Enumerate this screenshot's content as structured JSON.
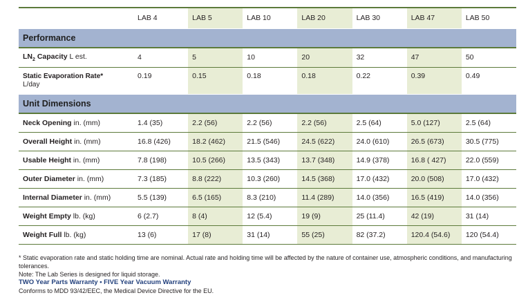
{
  "columns": [
    "LAB 4",
    "LAB 5",
    "LAB 10",
    "LAB 20",
    "LAB 30",
    "LAB 47",
    "LAB 50"
  ],
  "sections": {
    "performance": "Performance",
    "unit_dimensions": "Unit Dimensions"
  },
  "rows": {
    "ln2": {
      "label_a": "LN",
      "label_sub": "2",
      "label_b": " Capacity",
      "unit": " L est.",
      "values": [
        "4",
        "5",
        "10",
        "20",
        "32",
        "47",
        "50"
      ]
    },
    "evap": {
      "label": "Static Evaporation Rate*",
      "unit": "L/day",
      "values": [
        "0.19",
        "0.15",
        "0.18",
        "0.18",
        "0.22",
        "0.39",
        "0.49"
      ]
    },
    "neck": {
      "label": "Neck Opening",
      "unit": " in. (mm)",
      "values": [
        "1.4 (35)",
        "2.2 (56)",
        "2.2 (56)",
        "2.2 (56)",
        "2.5 (64)",
        "5.0 (127)",
        "2.5 (64)"
      ]
    },
    "overall": {
      "label": "Overall Height",
      "unit": " in. (mm)",
      "values": [
        "16.8 (426)",
        "18.2 (462)",
        "21.5 (546)",
        "24.5 (622)",
        "24.0 (610)",
        "26.5 (673)",
        "30.5 (775)"
      ]
    },
    "usable": {
      "label": "Usable Height",
      "unit": " in. (mm)",
      "values": [
        "7.8 (198)",
        "10.5 (266)",
        "13.5 (343)",
        "13.7 (348)",
        "14.9 (378)",
        "16.8 ( 427)",
        "22.0 (559)"
      ]
    },
    "outer": {
      "label": "Outer Diameter",
      "unit": " in. (mm)",
      "values": [
        "7.3 (185)",
        "8.8 (222)",
        "10.3 (260)",
        "14.5 (368)",
        "17.0 (432)",
        "20.0 (508)",
        "17.0 (432)"
      ]
    },
    "internal": {
      "label": "Internal Diameter",
      "unit": " in. (mm)",
      "values": [
        "5.5 (139)",
        "6.5 (165)",
        "8.3 (210)",
        "11.4 (289)",
        "14.0 (356)",
        "16.5 (419)",
        "14.0 (356)"
      ]
    },
    "wempty": {
      "label": "Weight Empty",
      "unit": " lb. (kg)",
      "values": [
        "6 (2.7)",
        "8 (4)",
        "12 (5.4)",
        "19 (9)",
        "25 (11.4)",
        "42 (19)",
        "31 (14)"
      ]
    },
    "wfull": {
      "label": "Weight Full",
      "unit": " lb. (kg)",
      "values": [
        "13 (6)",
        "17 (8)",
        "31 (14)",
        "55 (25)",
        "82 (37.2)",
        "120.4 (54.6)",
        "120 (54.4)"
      ]
    }
  },
  "notes": {
    "footnote": "* Static evaporation rate and static holding time are nominal. Actual rate and holding time will be affected by the nature of container use, atmospheric conditions, and manufacturing tolerances.",
    "note": "Note: The Lab Series is designed for liquid storage.",
    "warranty": "TWO Year Parts Warranty • FIVE Year Vacuum Warranty",
    "conformance": "Conforms to MDD 93/42/EEC, the Medical Device Directive for the EU."
  },
  "colors": {
    "section_bg": "#a3b3d0",
    "shade_bg": "#e8edd5",
    "rule": "#5c7a3a",
    "warranty_text": "#23417d"
  }
}
